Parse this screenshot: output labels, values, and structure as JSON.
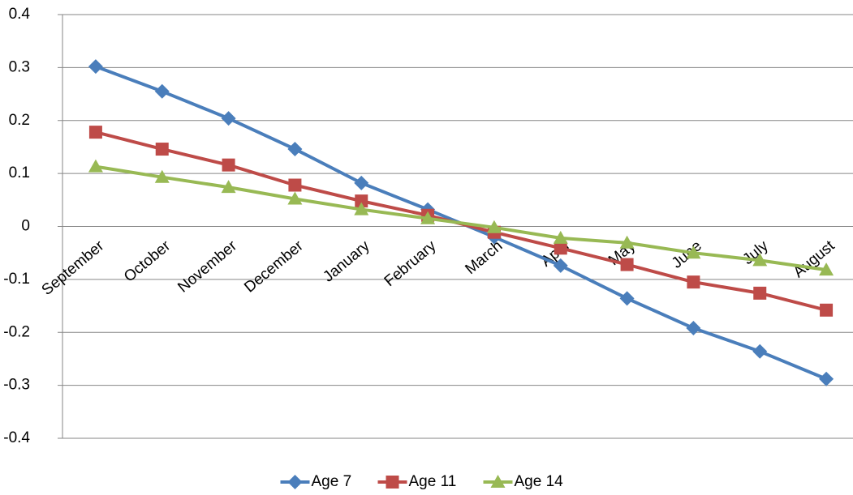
{
  "chart_data": {
    "type": "line",
    "categories": [
      "September",
      "October",
      "November",
      "December",
      "January",
      "February",
      "March",
      "April",
      "May",
      "June",
      "July",
      "August"
    ],
    "series": [
      {
        "name": "Age 7",
        "color": "#4a7ebb",
        "marker": "diamond",
        "values": [
          0.302,
          0.255,
          0.204,
          0.146,
          0.082,
          0.032,
          -0.02,
          -0.074,
          -0.136,
          -0.192,
          -0.236,
          -0.288
        ]
      },
      {
        "name": "Age 11",
        "color": "#be4b48",
        "marker": "square",
        "values": [
          0.178,
          0.146,
          0.116,
          0.078,
          0.048,
          0.021,
          -0.011,
          -0.041,
          -0.072,
          -0.105,
          -0.126,
          -0.158
        ]
      },
      {
        "name": "Age 14",
        "color": "#98b954",
        "marker": "triangle",
        "values": [
          0.113,
          0.093,
          0.074,
          0.052,
          0.032,
          0.015,
          -0.002,
          -0.022,
          -0.031,
          -0.05,
          -0.064,
          -0.082
        ]
      }
    ],
    "ylim": [
      -0.4,
      0.4
    ],
    "yticks": [
      -0.4,
      -0.3,
      -0.2,
      -0.1,
      0,
      0.1,
      0.2,
      0.3,
      0.4
    ],
    "grid": true,
    "legend": "bottom"
  }
}
